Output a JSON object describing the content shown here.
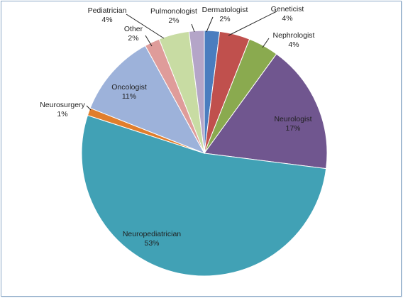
{
  "chart_data": {
    "type": "pie",
    "title": "",
    "start_angle_deg": 0,
    "direction": "clockwise",
    "slices": [
      {
        "label": "Dermatologist",
        "value": 2,
        "percent_label": "2%",
        "color": "#4a7dbf"
      },
      {
        "label": "Geneticist",
        "value": 4,
        "percent_label": "4%",
        "color": "#c0504d"
      },
      {
        "label": "Nephrologist",
        "value": 4,
        "percent_label": "4%",
        "color": "#8aaa4f"
      },
      {
        "label": "Neurologist",
        "value": 17,
        "percent_label": "17%",
        "color": "#70568f"
      },
      {
        "label": "Neuropediatrician",
        "value": 53,
        "percent_label": "53%",
        "color": "#41a1b5"
      },
      {
        "label": "Neurosurgery",
        "value": 1,
        "percent_label": "1%",
        "color": "#e17e2c"
      },
      {
        "label": "Oncologist",
        "value": 11,
        "percent_label": "11%",
        "color": "#9db2da"
      },
      {
        "label": "Other",
        "value": 2,
        "percent_label": "2%",
        "color": "#df9c9a"
      },
      {
        "label": "Pediatrician",
        "value": 4,
        "percent_label": "4%",
        "color": "#c8dca3"
      },
      {
        "label": "Pulmonologist",
        "value": 2,
        "percent_label": "2%",
        "color": "#b4a5c8"
      }
    ]
  }
}
